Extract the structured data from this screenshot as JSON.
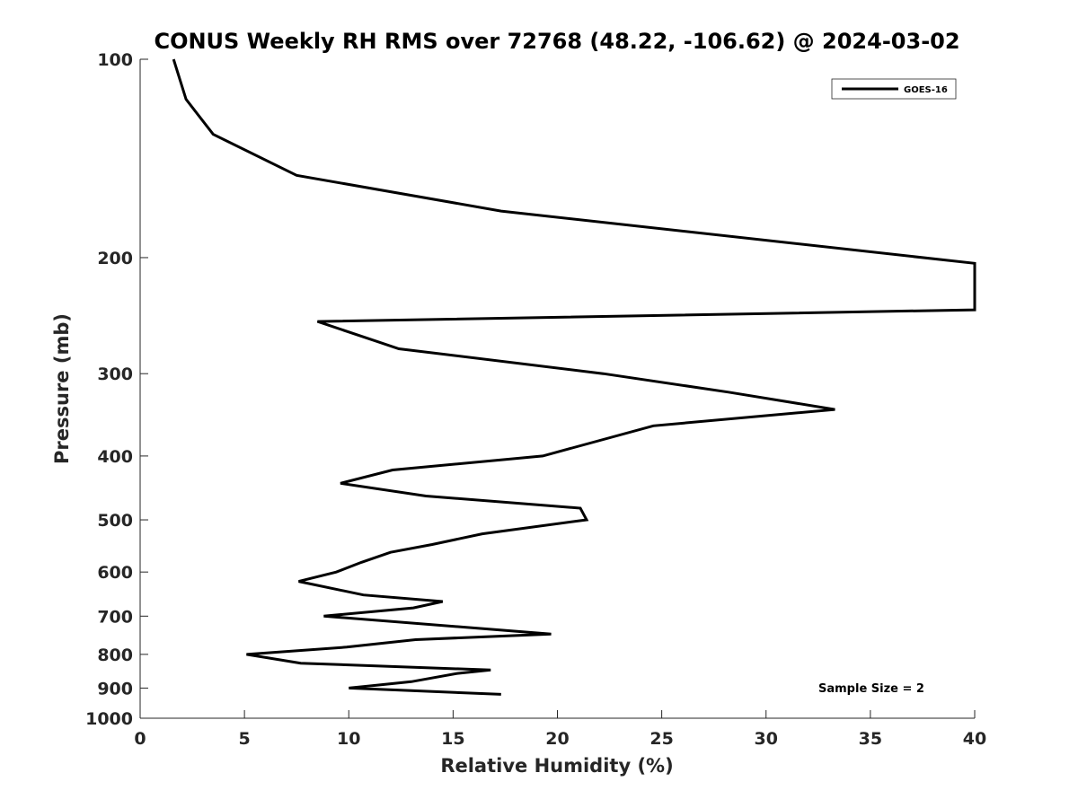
{
  "chart_data": {
    "type": "line",
    "title": "CONUS Weekly RH RMS over 72768 (48.22, -106.62) @ 2024-03-02",
    "xlabel": "Relative Humidity (%)",
    "ylabel": "Pressure (mb)",
    "xlim": [
      0,
      40
    ],
    "ylim": [
      100,
      1000
    ],
    "y_scale": "log",
    "y_reversed": true,
    "grid": false,
    "legend_position": "top-right",
    "x_ticks": [
      "0",
      "5",
      "10",
      "15",
      "20",
      "25",
      "30",
      "35",
      "40"
    ],
    "x_tick_values": [
      0,
      5,
      10,
      15,
      20,
      25,
      30,
      35,
      40
    ],
    "y_ticks": [
      "100",
      "200",
      "300",
      "400",
      "500",
      "600",
      "700",
      "800",
      "900",
      "1000"
    ],
    "y_tick_values": [
      100,
      200,
      300,
      400,
      500,
      600,
      700,
      800,
      900,
      1000
    ],
    "series": [
      {
        "name": "GOES-16",
        "color": "#000000",
        "x": [
          1.6,
          2.2,
          3.5,
          7.5,
          17.3,
          40.0,
          40.0,
          8.5,
          12.4,
          22.2,
          28.2,
          33.3,
          24.6,
          19.3,
          12.1,
          9.6,
          13.7,
          21.1,
          21.4,
          16.4,
          14.0,
          12.0,
          10.6,
          9.4,
          7.6,
          10.7,
          14.5,
          13.1,
          8.8,
          19.7,
          13.2,
          9.9,
          5.1,
          7.7,
          16.8,
          15.2,
          13.0,
          10.0,
          17.3
        ],
        "y": [
          100,
          115,
          130,
          150,
          170,
          204,
          240,
          250,
          275,
          300,
          320,
          340,
          360,
          400,
          420,
          440,
          460,
          480,
          500,
          525,
          545,
          560,
          580,
          600,
          620,
          650,
          665,
          680,
          700,
          745,
          760,
          780,
          800,
          825,
          845,
          855,
          880,
          900,
          920
        ]
      }
    ],
    "annotations": [
      "Sample Size = 2"
    ]
  }
}
